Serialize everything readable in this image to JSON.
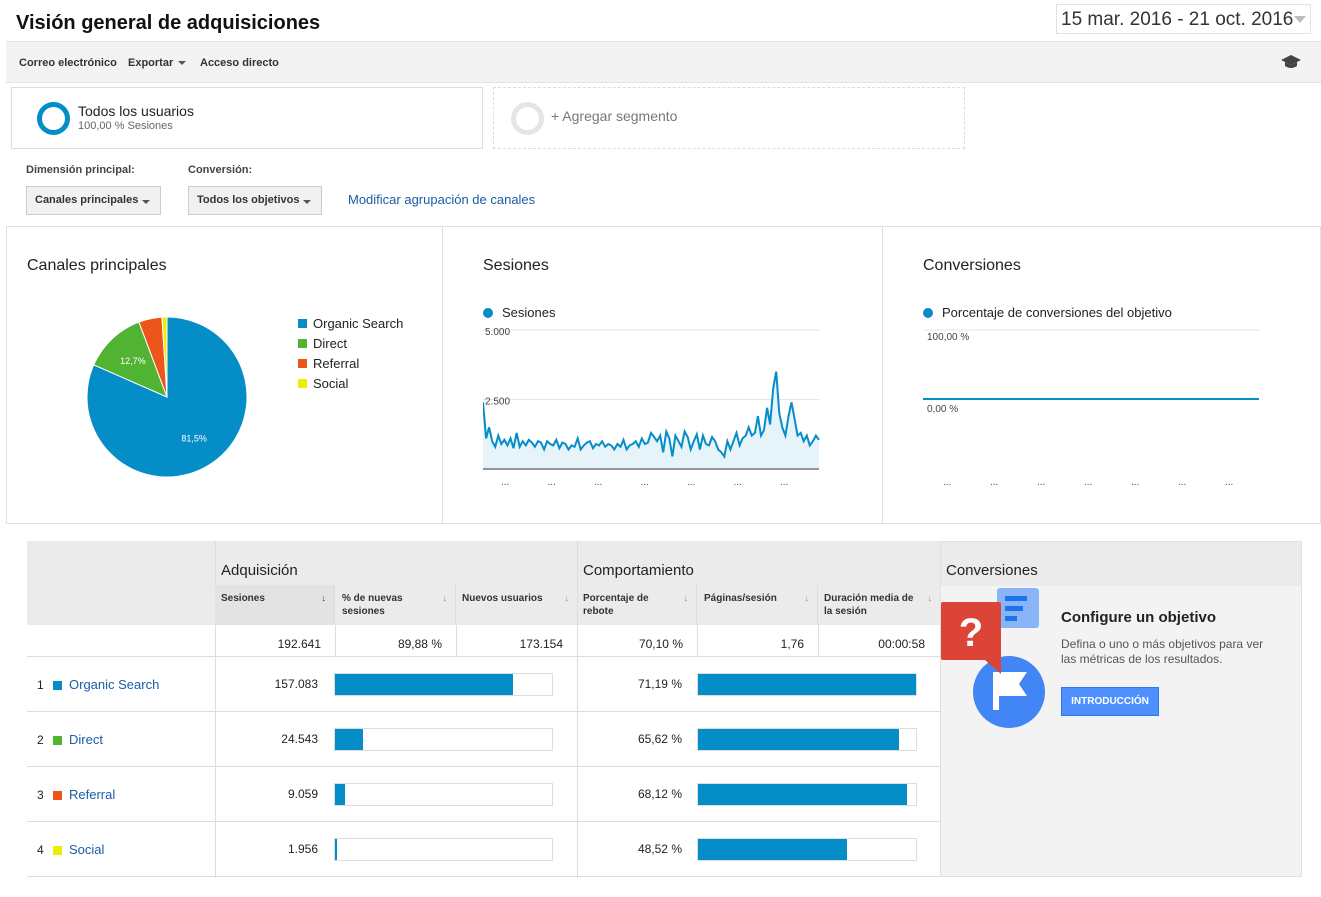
{
  "header": {
    "title": "Visión general de adquisiciones",
    "date_range": "15 mar. 2016 - 21 oct. 2016"
  },
  "toolbar": {
    "email": "Correo electrónico",
    "export": "Exportar",
    "shortcut": "Acceso directo",
    "help_icon": "graduation-cap-icon"
  },
  "segments": {
    "active": {
      "title": "Todos los usuarios",
      "subtitle": "100,00 % Sesiones"
    },
    "add": "+ Agregar segmento"
  },
  "controls": {
    "primary_dimension_label": "Dimensión principal:",
    "primary_dimension_value": "Canales principales",
    "conversion_label": "Conversión:",
    "conversion_value": "Todos los objetivos",
    "modify_link": "Modificar agrupación de canales"
  },
  "colors": {
    "organic": "#058dc7",
    "direct": "#50b432",
    "referral": "#ed561b",
    "social": "#edef00",
    "accent_link": "#1a5da6",
    "button": "#4d90fe"
  },
  "chart_data": [
    {
      "type": "pie",
      "title": "Canales principales",
      "categories": [
        "Organic Search",
        "Direct",
        "Referral",
        "Social"
      ],
      "values": [
        81.5,
        12.7,
        4.7,
        1.0
      ],
      "data_labels": [
        "81,5%",
        "12,7%",
        "",
        ""
      ],
      "legend": "right"
    },
    {
      "type": "area",
      "title": "Sesiones",
      "series": [
        {
          "name": "Sesiones",
          "values": [
            2400,
            1100,
            1500,
            1000,
            800,
            1200,
            900,
            1050,
            850,
            1100,
            750,
            1300,
            800,
            1000,
            850,
            1050,
            950,
            800,
            1000,
            950,
            700,
            1000,
            900,
            850,
            1050,
            750,
            950,
            900,
            700,
            850,
            800,
            1100,
            700,
            850,
            950,
            1000,
            750,
            900,
            850,
            1000,
            800,
            900,
            850,
            700,
            900,
            800,
            1050,
            700,
            850,
            900,
            1000,
            800,
            1100,
            900,
            950,
            1300,
            1150,
            1000,
            1200,
            600,
            1350,
            1100,
            450,
            1200,
            1000,
            800,
            1350,
            1150,
            700,
            1000,
            1250,
            700,
            1200,
            900,
            850,
            1150,
            1000,
            700,
            600,
            450,
            1000,
            700,
            1000,
            1300,
            850,
            1100,
            1200,
            1500,
            1200,
            1300,
            1900,
            1200,
            1400,
            2200,
            1600,
            2900,
            3500,
            2000,
            1500,
            1200,
            1900,
            2400,
            1800,
            1200,
            1300,
            1000,
            1200,
            850,
            1000,
            1200,
            1050
          ]
        }
      ],
      "ylim": [
        0,
        5000
      ],
      "yticks": [
        "5.000",
        "2.500"
      ],
      "xticks": [
        "...",
        "...",
        "...",
        "...",
        "...",
        "...",
        "...",
        "..."
      ],
      "grid": true
    },
    {
      "type": "line",
      "title": "Conversiones",
      "series": [
        {
          "name": "Porcentaje de conversiones del objetivo",
          "values": [
            0,
            0,
            0,
            0,
            0,
            0,
            0,
            0
          ]
        }
      ],
      "yticks": [
        "100,00 %",
        "0,00 %"
      ],
      "xticks": [
        "...",
        "...",
        "...",
        "...",
        "...",
        "...",
        "..."
      ],
      "grid": true
    },
    {
      "type": "table",
      "groups": [
        "Adquisición",
        "Comportamiento",
        "Conversiones"
      ],
      "columns": [
        "Sesiones",
        "% de nuevas sesiones",
        "Nuevos usuarios",
        "Porcentaje de rebote",
        "Páginas/sesión",
        "Duración media de la sesión"
      ],
      "totals": [
        "192.641",
        "89,88 %",
        "173.154",
        "70,10 %",
        "1,76",
        "00:00:58"
      ],
      "rows": [
        {
          "rank": "1",
          "channel": "Organic Search",
          "sessions": "157.083",
          "sessions_share": 0.815,
          "bounce": "71,19 %",
          "bounce_rate": 0.7119
        },
        {
          "rank": "2",
          "channel": "Direct",
          "sessions": "24.543",
          "sessions_share": 0.127,
          "bounce": "65,62 %",
          "bounce_rate": 0.6562
        },
        {
          "rank": "3",
          "channel": "Referral",
          "sessions": "9.059",
          "sessions_share": 0.047,
          "bounce": "68,12 %",
          "bounce_rate": 0.6812
        },
        {
          "rank": "4",
          "channel": "Social",
          "sessions": "1.956",
          "sessions_share": 0.01,
          "bounce": "48,52 %",
          "bounce_rate": 0.4852
        }
      ]
    }
  ],
  "conversions_box": {
    "title": "Conversiones",
    "goal_title": "Configure un objetivo",
    "goal_text": "Defina o uno o más objetivos para ver las métricas de los resultados.",
    "button": "INTRODUCCIÓN"
  }
}
